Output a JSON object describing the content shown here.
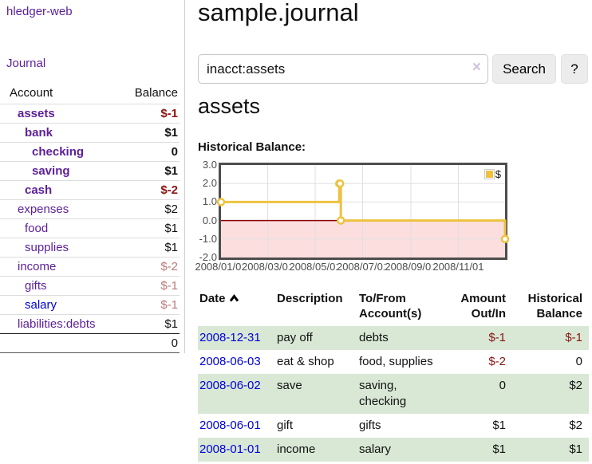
{
  "app": {
    "accent_purple": "#5c1f99",
    "link_blue": "#0000dd",
    "negative_strong_color": "#8b1414",
    "negative_soft_color": "#bd7878",
    "highlight_row_color": "#d8e8d5"
  },
  "sidebar": {
    "brand": "hledger-web",
    "journal_label": "Journal",
    "accounts_table": {
      "headers": [
        "Account",
        "Balance"
      ],
      "rows": [
        {
          "account": "assets",
          "balance": "$-1",
          "indent": 1,
          "emphasis": true,
          "balance_tone": "negative-strong",
          "link_tone": "visited"
        },
        {
          "account": "bank",
          "balance": "$1",
          "indent": 2,
          "emphasis": true,
          "balance_tone": "normal",
          "link_tone": "visited"
        },
        {
          "account": "checking",
          "balance": "0",
          "indent": 3,
          "emphasis": true,
          "balance_tone": "normal",
          "link_tone": "visited"
        },
        {
          "account": "saving",
          "balance": "$1",
          "indent": 3,
          "emphasis": true,
          "balance_tone": "normal",
          "link_tone": "visited"
        },
        {
          "account": "cash",
          "balance": "$-2",
          "indent": 2,
          "emphasis": true,
          "balance_tone": "negative-strong",
          "link_tone": "visited"
        },
        {
          "account": "expenses",
          "balance": "$2",
          "indent": 1,
          "emphasis": false,
          "balance_tone": "normal",
          "link_tone": "visited"
        },
        {
          "account": "food",
          "balance": "$1",
          "indent": 2,
          "emphasis": false,
          "balance_tone": "normal",
          "link_tone": "visited"
        },
        {
          "account": "supplies",
          "balance": "$1",
          "indent": 2,
          "emphasis": false,
          "balance_tone": "normal",
          "link_tone": "visited"
        },
        {
          "account": "income",
          "balance": "$-2",
          "indent": 1,
          "emphasis": false,
          "balance_tone": "negative-soft",
          "link_tone": "visited"
        },
        {
          "account": "gifts",
          "balance": "$-1",
          "indent": 2,
          "emphasis": false,
          "balance_tone": "negative-soft",
          "link_tone": "visited"
        },
        {
          "account": "salary",
          "balance": "$-1",
          "indent": 2,
          "emphasis": false,
          "balance_tone": "negative-soft",
          "link_tone": "unvisited"
        },
        {
          "account": "liabilities:debts",
          "balance": "$1",
          "indent": 1,
          "emphasis": false,
          "balance_tone": "normal",
          "link_tone": "visited"
        }
      ],
      "total": "0"
    }
  },
  "header": {
    "title": "sample.journal"
  },
  "search": {
    "value": "inacct:assets",
    "clear_icon": "×",
    "button_label": "Search",
    "help_label": "?"
  },
  "account_page": {
    "heading": "assets",
    "chart_label": "Historical Balance:"
  },
  "chart_data": {
    "type": "line",
    "step": true,
    "title": "Historical Balance:",
    "series": [
      {
        "name": "$",
        "color": "#EDC240",
        "points": [
          [
            "2008-01-01",
            1
          ],
          [
            "2008-06-01",
            2
          ],
          [
            "2008-06-02",
            2
          ],
          [
            "2008-06-03",
            0
          ],
          [
            "2008-12-31",
            -1
          ]
        ]
      }
    ],
    "xlim": [
      "2008-01-01",
      "2008-12-31"
    ],
    "ylim": [
      -2,
      3
    ],
    "x_tick_labels": [
      "2008/01/01",
      "2008/03/01",
      "2008/05/01",
      "2008/07/01",
      "2008/09/01",
      "2008/11/01"
    ],
    "y_tick_labels": [
      "3.0",
      "2.0",
      "1.0",
      "0.0",
      "-1.0",
      "-2.0"
    ],
    "grid": true,
    "gridline_color": "#e0e0e0",
    "border_color": "#4d4d4d",
    "negative_region_color": "#fcdede",
    "zero_line_color": "#8b0000",
    "legend_position": "top-right"
  },
  "register": {
    "headers": {
      "date": "Date",
      "description": "Description",
      "accounts": "To/From Account(s)",
      "amount": "Amount Out/In",
      "balance": "Historical Balance"
    },
    "sort": {
      "column": "date",
      "direction": "ascending"
    },
    "rows": [
      {
        "date": "2008-12-31",
        "description": "pay off",
        "accounts": "debts",
        "amount": "$-1",
        "balance": "$-1",
        "highlight": true
      },
      {
        "date": "2008-06-03",
        "description": "eat & shop",
        "accounts": "food, supplies",
        "amount": "$-2",
        "balance": "0",
        "highlight": false
      },
      {
        "date": "2008-06-02",
        "description": "save",
        "accounts": "saving, checking",
        "amount": "0",
        "balance": "$2",
        "highlight": true
      },
      {
        "date": "2008-06-01",
        "description": "gift",
        "accounts": "gifts",
        "amount": "$1",
        "balance": "$2",
        "highlight": false
      },
      {
        "date": "2008-01-01",
        "description": "income",
        "accounts": "salary",
        "amount": "$1",
        "balance": "$1",
        "highlight": true
      }
    ]
  }
}
